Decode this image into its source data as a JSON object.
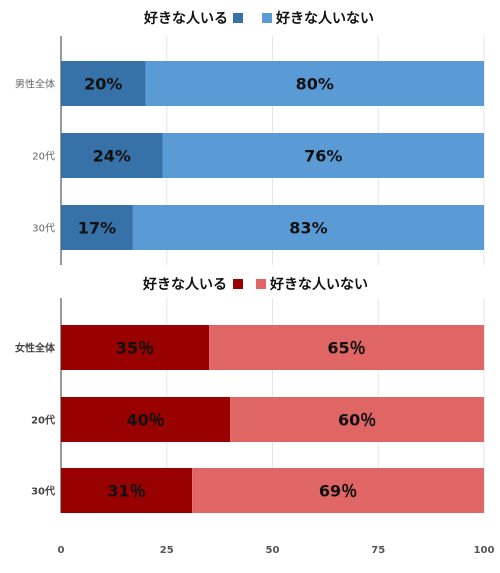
{
  "chart_data": [
    {
      "type": "bar",
      "orientation": "horizontal",
      "stacked": true,
      "legend_position": "top",
      "categories": [
        "男性全体",
        "20代",
        "30代"
      ],
      "series": [
        {
          "name": "好きな人いる",
          "values": [
            20,
            24,
            17
          ],
          "labels": [
            "20%",
            "24%",
            "17%"
          ],
          "color": "#3671a8"
        },
        {
          "name": "好きな人いない",
          "values": [
            80,
            76,
            83
          ],
          "labels": [
            "80%",
            "76%",
            "83%"
          ],
          "color": "#5b9bd5"
        }
      ],
      "xlim": [
        0,
        100
      ]
    },
    {
      "type": "bar",
      "orientation": "horizontal",
      "stacked": true,
      "legend_position": "top",
      "categories": [
        "女性全体",
        "20代",
        "30代"
      ],
      "series": [
        {
          "name": "好きな人いる",
          "values": [
            35,
            40,
            31
          ],
          "labels": [
            "35％",
            "40％",
            "31％"
          ],
          "color": "#990000"
        },
        {
          "name": "好きな人いない",
          "values": [
            65,
            60,
            69
          ],
          "labels": [
            "65％",
            "60％",
            "69％"
          ],
          "color": "#e06666"
        }
      ],
      "xlim": [
        0,
        100
      ],
      "x_ticks": [
        "0",
        "25",
        "50",
        "75",
        "100"
      ]
    }
  ]
}
